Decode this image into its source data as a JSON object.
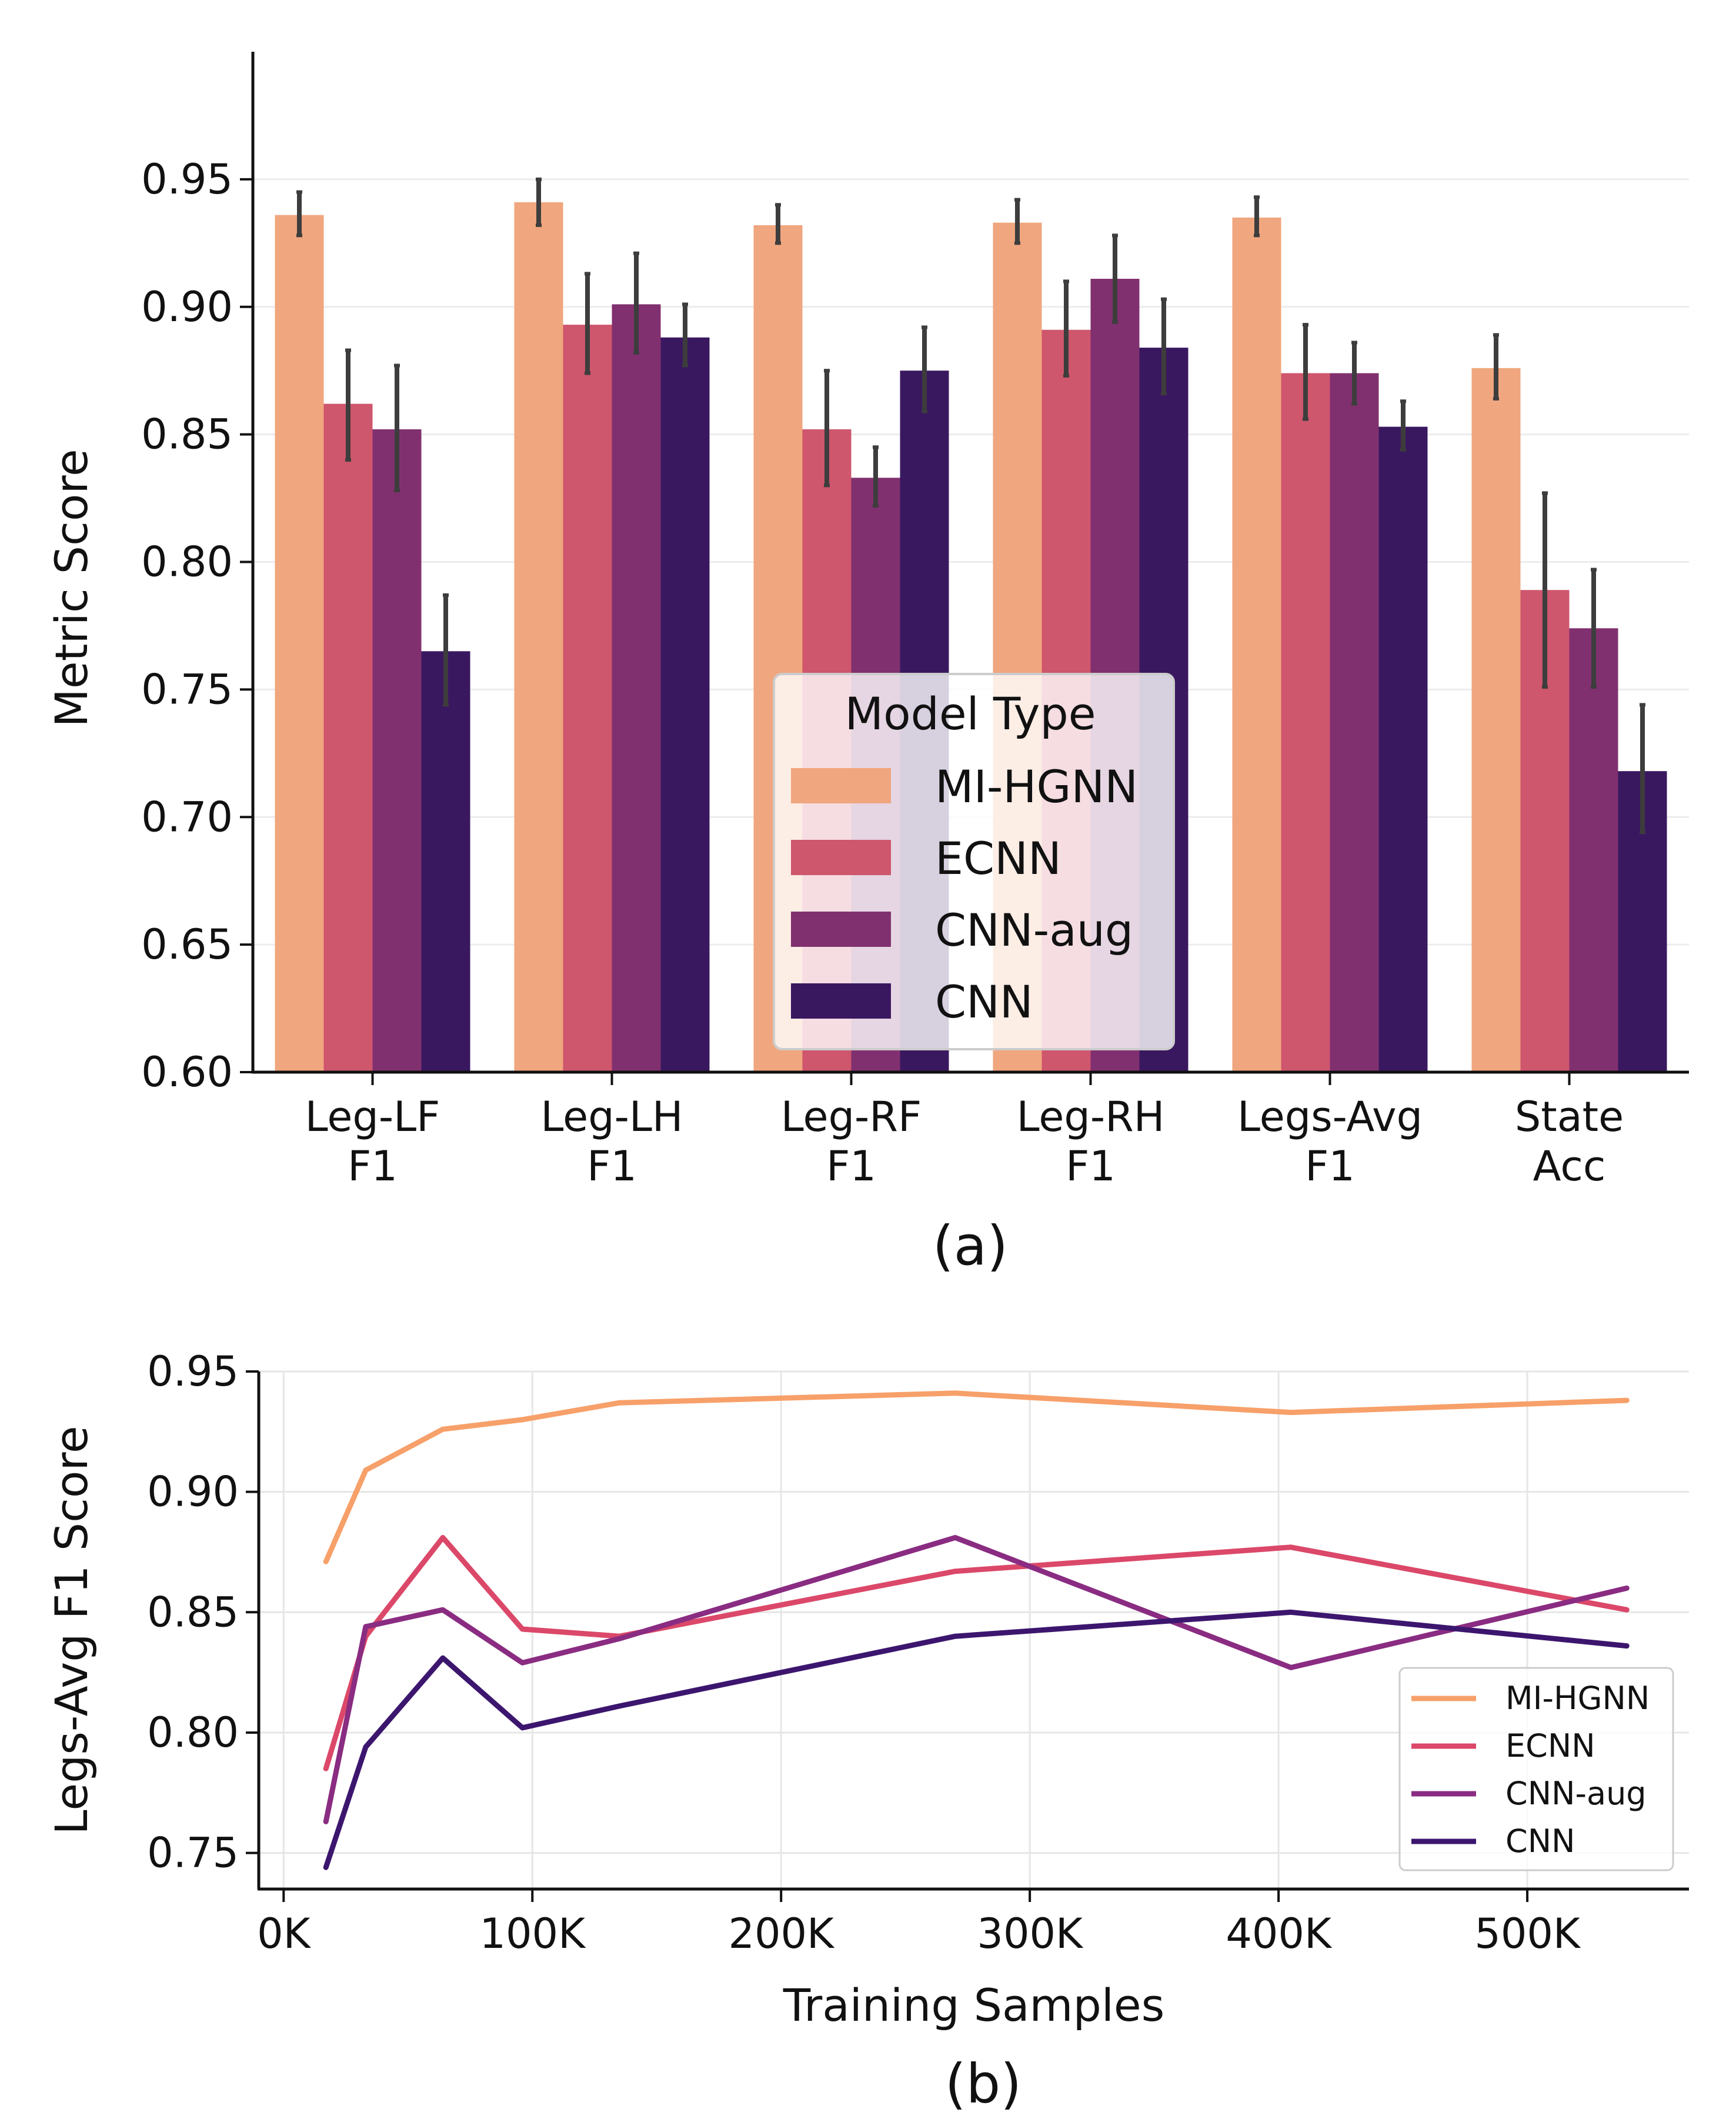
{
  "figure": {
    "caption_a": "(a)",
    "caption_b": "(b)"
  },
  "colors": {
    "MI-HGNN": "#F0A67E",
    "ECNN": "#CE566D",
    "CNN-aug": "#81306F",
    "CNN": "#3A1860",
    "line_MI-HGNN": "#F7A06A",
    "line_ECNN": "#DB4869",
    "line_CNN-aug": "#8A2C82",
    "line_CNN": "#3C166E"
  },
  "chart_data": [
    {
      "type": "bar",
      "id": "a",
      "title": "",
      "xlabel": "",
      "ylabel": "Metric Score",
      "ylim": [
        0.6,
        1.0
      ],
      "yticks": [
        "0.60",
        "0.65",
        "0.70",
        "0.75",
        "0.80",
        "0.85",
        "0.90",
        "0.95"
      ],
      "categories": [
        [
          "Leg-LF",
          "F1"
        ],
        [
          "Leg-LH",
          "F1"
        ],
        [
          "Leg-RF",
          "F1"
        ],
        [
          "Leg-RH",
          "F1"
        ],
        [
          "Legs-Avg",
          "F1"
        ],
        [
          "State",
          "Acc"
        ]
      ],
      "series": [
        {
          "name": "MI-HGNN",
          "values": [
            0.936,
            0.941,
            0.932,
            0.933,
            0.935,
            0.876
          ],
          "err_low": [
            0.928,
            0.932,
            0.925,
            0.925,
            0.928,
            0.864
          ],
          "err_high": [
            0.945,
            0.95,
            0.94,
            0.942,
            0.943,
            0.889
          ]
        },
        {
          "name": "ECNN",
          "values": [
            0.862,
            0.893,
            0.852,
            0.891,
            0.874,
            0.789
          ],
          "err_low": [
            0.84,
            0.874,
            0.83,
            0.873,
            0.856,
            0.751
          ],
          "err_high": [
            0.883,
            0.913,
            0.875,
            0.91,
            0.893,
            0.827
          ]
        },
        {
          "name": "CNN-aug",
          "values": [
            0.852,
            0.901,
            0.833,
            0.911,
            0.874,
            0.774
          ],
          "err_low": [
            0.828,
            0.882,
            0.822,
            0.894,
            0.862,
            0.751
          ],
          "err_high": [
            0.877,
            0.921,
            0.845,
            0.928,
            0.886,
            0.797
          ]
        },
        {
          "name": "CNN",
          "values": [
            0.765,
            0.888,
            0.875,
            0.884,
            0.853,
            0.718
          ],
          "err_low": [
            0.744,
            0.877,
            0.859,
            0.866,
            0.844,
            0.694
          ],
          "err_high": [
            0.787,
            0.901,
            0.892,
            0.903,
            0.863,
            0.744
          ]
        }
      ],
      "legend": {
        "title": "Model Type",
        "placement": "lower-center"
      },
      "grid": true
    },
    {
      "type": "line",
      "id": "b",
      "title": "",
      "xlabel": "Training Samples",
      "ylabel": "Legs-Avg F1 Score",
      "xlim": [
        -10000,
        565000
      ],
      "ylim": [
        0.735,
        0.95
      ],
      "xticks": [
        {
          "value": 0,
          "label": "0K"
        },
        {
          "value": 100000,
          "label": "100K"
        },
        {
          "value": 200000,
          "label": "200K"
        },
        {
          "value": 300000,
          "label": "300K"
        },
        {
          "value": 400000,
          "label": "400K"
        },
        {
          "value": 500000,
          "label": "500K"
        }
      ],
      "yticks": [
        {
          "value": 0.75,
          "label": "0.75"
        },
        {
          "value": 0.8,
          "label": "0.80"
        },
        {
          "value": 0.85,
          "label": "0.85"
        },
        {
          "value": 0.9,
          "label": "0.90"
        },
        {
          "value": 0.95,
          "label": "0.95"
        }
      ],
      "series": [
        {
          "name": "MI-HGNN",
          "x": [
            17000,
            33000,
            64000,
            96000,
            135000,
            270000,
            405000,
            540000
          ],
          "y": [
            0.871,
            0.909,
            0.926,
            0.93,
            0.937,
            0.941,
            0.933,
            0.938
          ]
        },
        {
          "name": "ECNN",
          "x": [
            17000,
            33000,
            64000,
            96000,
            135000,
            270000,
            405000,
            540000
          ],
          "y": [
            0.785,
            0.84,
            0.881,
            0.843,
            0.84,
            0.867,
            0.877,
            0.851
          ]
        },
        {
          "name": "CNN-aug",
          "x": [
            17000,
            33000,
            64000,
            96000,
            135000,
            270000,
            405000,
            540000
          ],
          "y": [
            0.763,
            0.844,
            0.851,
            0.829,
            0.839,
            0.881,
            0.827,
            0.86
          ]
        },
        {
          "name": "CNN",
          "x": [
            17000,
            33000,
            64000,
            96000,
            135000,
            270000,
            405000,
            540000
          ],
          "y": [
            0.744,
            0.794,
            0.831,
            0.802,
            0.811,
            0.84,
            0.85,
            0.836
          ]
        }
      ],
      "legend": {
        "title": "",
        "placement": "lower-right"
      },
      "grid": true
    }
  ]
}
